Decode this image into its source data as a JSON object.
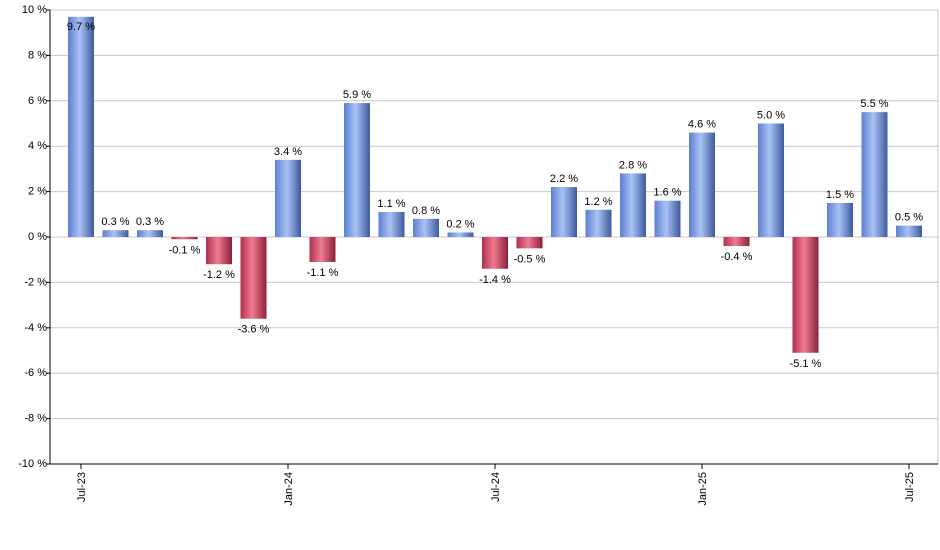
{
  "chart_data": {
    "type": "bar",
    "title": "",
    "xlabel": "",
    "ylabel": "",
    "ylim": [
      -10,
      10
    ],
    "grid": true,
    "legend": "none",
    "y_ticks": [
      "-10 %",
      "-8 %",
      "-6 %",
      "-4 %",
      "-2 %",
      "0 %",
      "2 %",
      "4 %",
      "6 %",
      "8 %",
      "10 %"
    ],
    "x_ticks": [
      {
        "index": 0,
        "label": "Jul-23"
      },
      {
        "index": 6,
        "label": "Jan-24"
      },
      {
        "index": 12,
        "label": "Jul-24"
      },
      {
        "index": 18,
        "label": "Jan-25"
      },
      {
        "index": 24,
        "label": "Jul-25"
      }
    ],
    "values": [
      9.7,
      0.3,
      0.3,
      -0.1,
      -1.2,
      -3.6,
      3.4,
      -1.1,
      5.9,
      1.1,
      0.8,
      0.2,
      -1.4,
      -0.5,
      2.2,
      1.2,
      2.8,
      1.6,
      4.6,
      -0.4,
      5.0,
      -5.1,
      1.5,
      5.5,
      0.5
    ],
    "data_labels": [
      "9.7 %",
      "0.3 %",
      "0.3 %",
      "-0.1 %",
      "-1.2 %",
      "-3.6 %",
      "3.4 %",
      "-1.1 %",
      "5.9 %",
      "1.1 %",
      "0.8 %",
      "0.2 %",
      "-1.4 %",
      "-0.5 %",
      "2.2 %",
      "1.2 %",
      "2.8 %",
      "1.6 %",
      "4.6 %",
      "-0.4 %",
      "5.0 %",
      "-5.1 %",
      "1.5 %",
      "5.5 %",
      "0.5 %"
    ],
    "colors": {
      "positive": "#7b9be0",
      "negative": "#c93d5d",
      "grid": "#c8c8c8",
      "axis": "#000000"
    }
  }
}
